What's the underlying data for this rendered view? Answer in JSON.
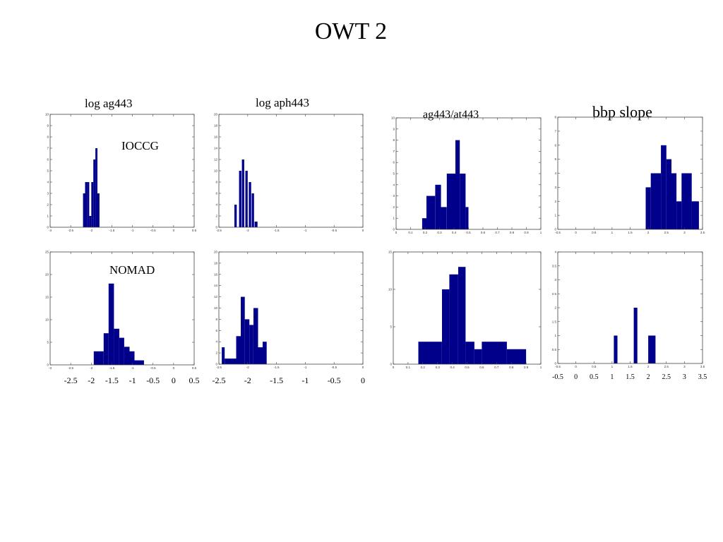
{
  "page": {
    "title": "OWT 2",
    "column_titles": [
      "log ag443",
      "log aph443",
      "ag443/at443",
      "bbp slope"
    ],
    "row_labels": [
      "IOCCG",
      "NOMAD"
    ],
    "bottom_axis_labels": [
      [
        "-2.5",
        "-2",
        "-1.5",
        "-1",
        "-0.5",
        "0",
        "0.5"
      ],
      [
        "-2.5",
        "-2",
        "-1.5",
        "-1",
        "-0.5",
        "0"
      ],
      [],
      [
        "-0.5",
        "0",
        "0.5",
        "1",
        "1.5",
        "2",
        "2.5",
        "3",
        "3.5"
      ]
    ],
    "bar_color": "#00008b"
  },
  "chart_data": [
    {
      "type": "bar",
      "title": "log ag443",
      "label": "IOCCG",
      "xlim": [
        -3,
        0.5
      ],
      "ylim": [
        0,
        10
      ],
      "xticks": [
        -3,
        -2.5,
        -2,
        -1.5,
        -1,
        -0.5,
        0,
        0.5
      ],
      "yticks": [
        0,
        1,
        2,
        3,
        4,
        5,
        6,
        7,
        8,
        9,
        10
      ],
      "bins": [
        [
          -2.2,
          -2.15,
          3
        ],
        [
          -2.15,
          -2.1,
          4
        ],
        [
          -2.1,
          -2.05,
          4
        ],
        [
          -2.05,
          -2.0,
          1
        ],
        [
          -2.0,
          -1.95,
          4
        ],
        [
          -1.95,
          -1.9,
          6
        ],
        [
          -1.9,
          -1.85,
          7
        ],
        [
          -1.85,
          -1.8,
          3
        ]
      ]
    },
    {
      "type": "bar",
      "title": "log aph443",
      "label": "",
      "xlim": [
        -2.5,
        0
      ],
      "ylim": [
        0,
        20
      ],
      "xticks": [
        -2.5,
        -2,
        -1.5,
        -1,
        -0.5,
        0
      ],
      "yticks": [
        0,
        2,
        4,
        6,
        8,
        10,
        12,
        14,
        16,
        18,
        20
      ],
      "bins": [
        [
          -2.23,
          -2.19,
          4
        ],
        [
          -2.15,
          -2.11,
          10
        ],
        [
          -2.1,
          -2.06,
          12
        ],
        [
          -2.04,
          -2.0,
          10
        ],
        [
          -1.98,
          -1.94,
          8
        ],
        [
          -1.93,
          -1.89,
          6
        ],
        [
          -1.88,
          -1.83,
          1
        ]
      ]
    },
    {
      "type": "bar",
      "title": "ag443/at443",
      "label": "",
      "xlim": [
        0,
        1
      ],
      "ylim": [
        0,
        10
      ],
      "xticks": [
        0,
        0.1,
        0.2,
        0.3,
        0.4,
        0.5,
        0.6,
        0.7,
        0.8,
        0.9,
        1
      ],
      "yticks": [
        0,
        1,
        2,
        3,
        4,
        5,
        6,
        7,
        8,
        9,
        10
      ],
      "bins": [
        [
          0.18,
          0.21,
          1
        ],
        [
          0.21,
          0.27,
          3
        ],
        [
          0.27,
          0.31,
          4
        ],
        [
          0.31,
          0.35,
          2
        ],
        [
          0.35,
          0.41,
          5
        ],
        [
          0.41,
          0.44,
          8
        ],
        [
          0.44,
          0.48,
          5
        ],
        [
          0.48,
          0.5,
          2
        ]
      ]
    },
    {
      "type": "bar",
      "title": "bbp slope",
      "label": "",
      "xlim": [
        -0.5,
        3.5
      ],
      "ylim": [
        0,
        8
      ],
      "xticks": [
        -0.5,
        0,
        0.5,
        1,
        1.5,
        2,
        2.5,
        3,
        3.5
      ],
      "yticks": [
        0,
        1,
        2,
        3,
        4,
        5,
        6,
        7,
        8
      ],
      "bins": [
        [
          1.93,
          2.07,
          3
        ],
        [
          2.07,
          2.35,
          4
        ],
        [
          2.35,
          2.5,
          6
        ],
        [
          2.5,
          2.64,
          5
        ],
        [
          2.64,
          2.78,
          4
        ],
        [
          2.78,
          2.92,
          2
        ],
        [
          2.92,
          3.2,
          4
        ],
        [
          3.2,
          3.4,
          2
        ]
      ]
    },
    {
      "type": "bar",
      "title": "",
      "label": "NOMAD",
      "xlim": [
        -3,
        0.5
      ],
      "ylim": [
        0,
        25
      ],
      "xticks": [
        -3,
        -2.5,
        -2,
        -1.5,
        -1,
        -0.5,
        0,
        0.5
      ],
      "yticks": [
        0,
        5,
        10,
        15,
        20,
        25
      ],
      "bins": [
        [
          -1.94,
          -1.7,
          3
        ],
        [
          -1.7,
          -1.58,
          7
        ],
        [
          -1.58,
          -1.45,
          18
        ],
        [
          -1.45,
          -1.32,
          8
        ],
        [
          -1.32,
          -1.2,
          6
        ],
        [
          -1.2,
          -1.07,
          4
        ],
        [
          -1.07,
          -0.95,
          3
        ],
        [
          -0.95,
          -0.72,
          1
        ]
      ]
    },
    {
      "type": "bar",
      "title": "",
      "label": "",
      "xlim": [
        -2.5,
        0
      ],
      "ylim": [
        0,
        20
      ],
      "xticks": [
        -2.5,
        -2,
        -1.5,
        -1,
        -0.5,
        0
      ],
      "yticks": [
        0,
        2,
        4,
        6,
        8,
        10,
        12,
        14,
        16,
        18,
        20
      ],
      "bins": [
        [
          -2.45,
          -2.4,
          3
        ],
        [
          -2.4,
          -2.2,
          1
        ],
        [
          -2.2,
          -2.12,
          5
        ],
        [
          -2.12,
          -2.05,
          12
        ],
        [
          -2.05,
          -1.97,
          8
        ],
        [
          -1.97,
          -1.9,
          7
        ],
        [
          -1.9,
          -1.82,
          10
        ],
        [
          -1.82,
          -1.74,
          3
        ],
        [
          -1.74,
          -1.67,
          4
        ]
      ]
    },
    {
      "type": "bar",
      "title": "",
      "label": "",
      "xlim": [
        0,
        1
      ],
      "ylim": [
        0,
        15
      ],
      "xticks": [
        0,
        0.1,
        0.2,
        0.3,
        0.4,
        0.5,
        0.6,
        0.7,
        0.8,
        0.9,
        1
      ],
      "yticks": [
        0,
        5,
        10,
        15
      ],
      "bins": [
        [
          0.17,
          0.33,
          3
        ],
        [
          0.33,
          0.38,
          10
        ],
        [
          0.38,
          0.44,
          12
        ],
        [
          0.44,
          0.49,
          13
        ],
        [
          0.49,
          0.55,
          3
        ],
        [
          0.55,
          0.6,
          2
        ],
        [
          0.6,
          0.77,
          3
        ],
        [
          0.77,
          0.9,
          2
        ]
      ]
    },
    {
      "type": "bar",
      "title": "",
      "label": "",
      "xlim": [
        -0.5,
        3.5
      ],
      "ylim": [
        0,
        4
      ],
      "xticks": [
        -0.5,
        0,
        0.5,
        1,
        1.5,
        2,
        2.5,
        3,
        3.5
      ],
      "yticks": [
        0,
        0.5,
        1,
        1.5,
        2,
        2.5,
        3,
        3.5,
        4
      ],
      "bins": [
        [
          1.05,
          1.15,
          1
        ],
        [
          1.6,
          1.7,
          2
        ],
        [
          2.0,
          2.2,
          1
        ]
      ]
    }
  ]
}
